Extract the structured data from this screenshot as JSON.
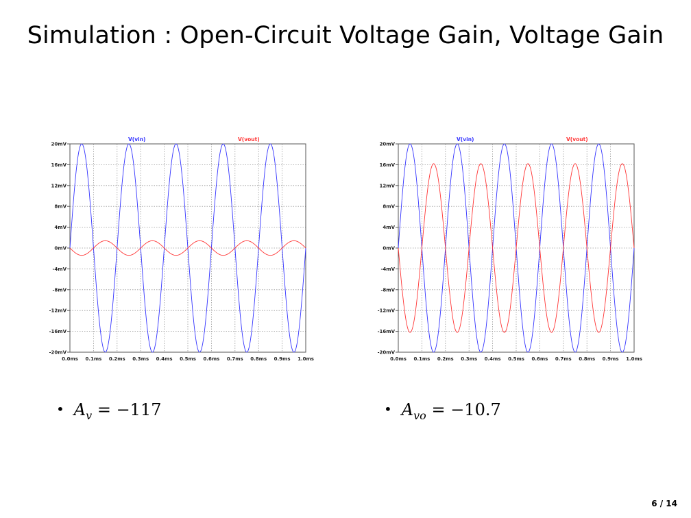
{
  "slide": {
    "title": "Simulation : Open-Circuit Voltage Gain, Voltage Gain",
    "page": "6 / 14"
  },
  "bullets": [
    {
      "var": "A",
      "sub": "v",
      "value": "= −117"
    },
    {
      "var": "A",
      "sub": "vo",
      "value": "= −10.7"
    }
  ],
  "colors": {
    "vin": "#3333ff",
    "vout": "#ff3333",
    "grid": "#999999",
    "axis": "#555555"
  },
  "chart_data": [
    {
      "type": "line",
      "x_ticks": [
        "0.0ms",
        "0.1ms",
        "0.2ms",
        "0.3ms",
        "0.4ms",
        "0.5ms",
        "0.6ms",
        "0.7ms",
        "0.8ms",
        "0.9ms",
        "1.0ms"
      ],
      "y_ticks": [
        "20mV",
        "16mV",
        "12mV",
        "8mV",
        "4mV",
        "0mV",
        "-4mV",
        "-8mV",
        "-12mV",
        "-16mV",
        "-20mV"
      ],
      "xlim_ms": [
        0,
        1.0
      ],
      "ylim_mV": [
        -20,
        20
      ],
      "grid": true,
      "series": [
        {
          "name": "V(vin)",
          "amplitude_mV": 20,
          "frequency_kHz": 5,
          "phase_deg": 0,
          "color": "#3333ff"
        },
        {
          "name": "V(vout)",
          "amplitude_mV": 1.4,
          "frequency_kHz": 5,
          "phase_deg": 180,
          "color": "#ff3333"
        }
      ]
    },
    {
      "type": "line",
      "x_ticks": [
        "0.0ms",
        "0.1ms",
        "0.2ms",
        "0.3ms",
        "0.4ms",
        "0.5ms",
        "0.6ms",
        "0.7ms",
        "0.8ms",
        "0.9ms",
        "1.0ms"
      ],
      "y_ticks": [
        "20mV",
        "16mV",
        "12mV",
        "8mV",
        "4mV",
        "0mV",
        "-4mV",
        "-8mV",
        "-12mV",
        "-16mV",
        "-20mV"
      ],
      "xlim_ms": [
        0,
        1.0
      ],
      "ylim_mV": [
        -20,
        20
      ],
      "grid": true,
      "series": [
        {
          "name": "V(vin)",
          "amplitude_mV": 20,
          "frequency_kHz": 5,
          "phase_deg": 0,
          "color": "#3333ff"
        },
        {
          "name": "V(vout)",
          "amplitude_mV": 16.2,
          "frequency_kHz": 5,
          "phase_deg": 180,
          "color": "#ff3333"
        }
      ]
    }
  ]
}
